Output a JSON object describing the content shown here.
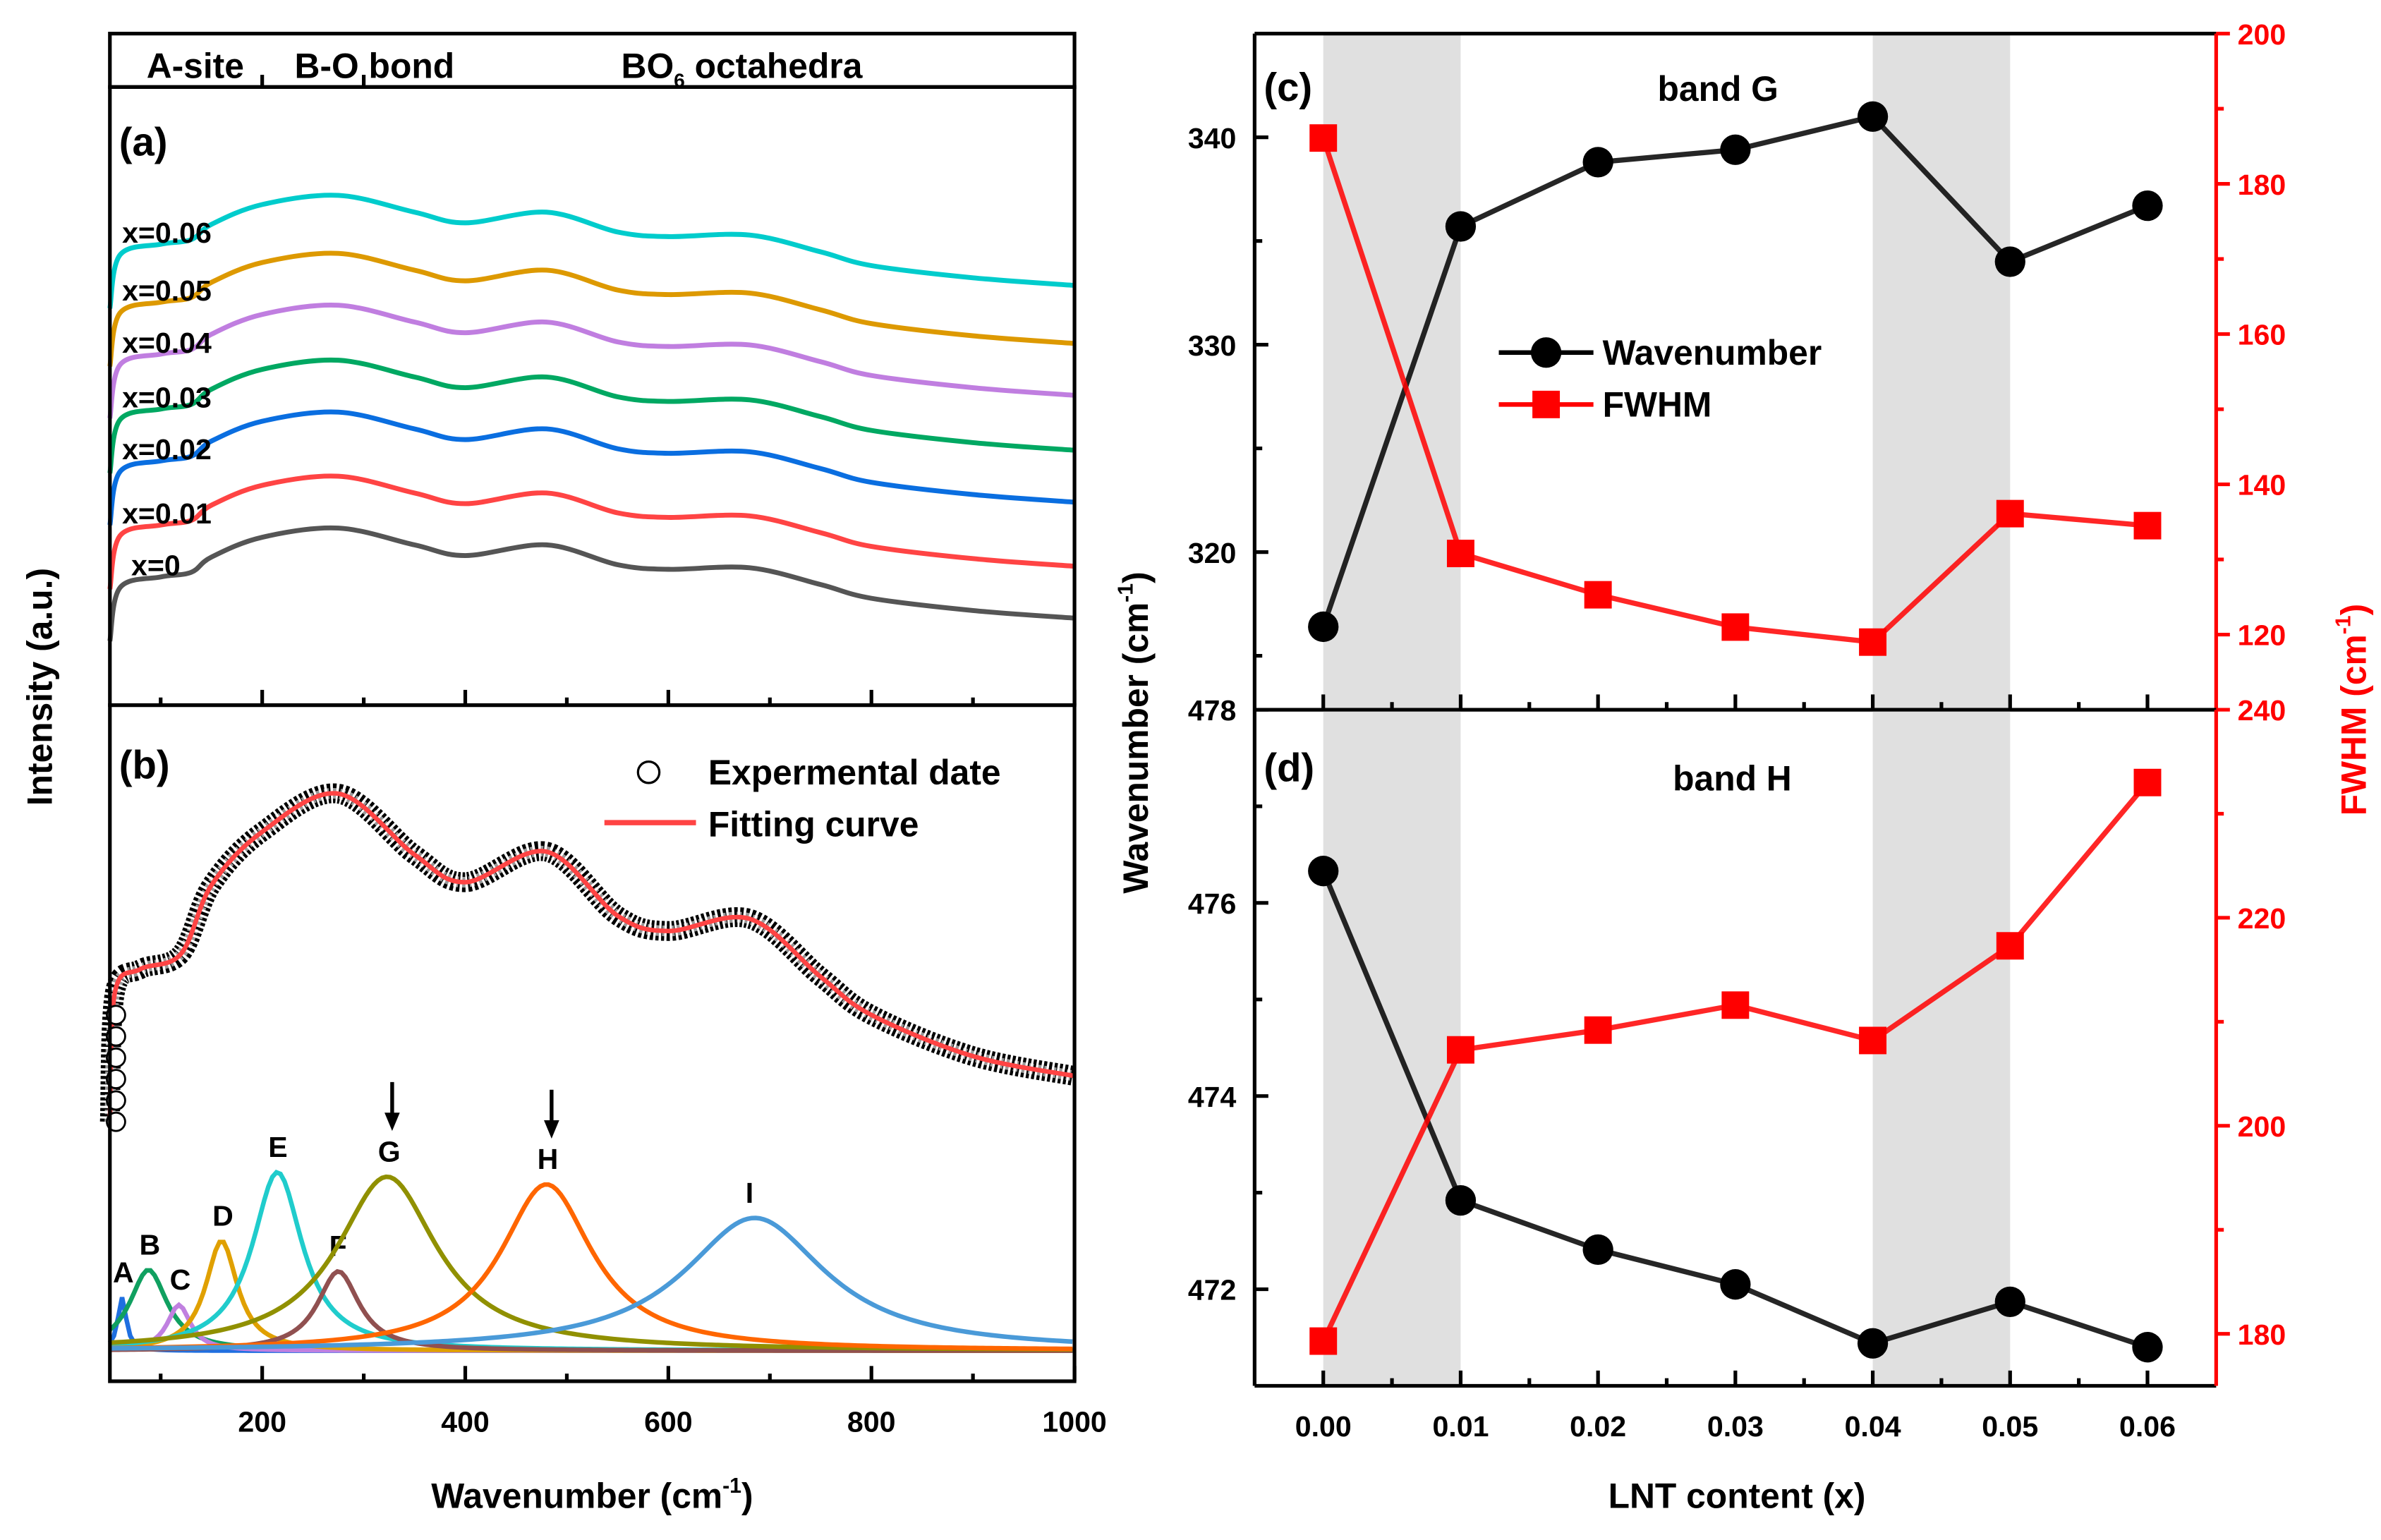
{
  "chart_data": [
    {
      "panel": "(a)",
      "type": "line",
      "ylabel": "Intensity (a.u.)",
      "xlim": [
        50,
        1000
      ],
      "ylim": [
        0,
        405
      ],
      "regions": [
        "A-site",
        "B-O bond",
        "BO6 octahedra"
      ],
      "x": [
        50,
        60,
        100,
        130,
        150,
        200,
        275,
        350,
        400,
        480,
        550,
        600,
        680,
        750,
        800,
        900,
        1000
      ],
      "series": [
        {
          "name": "x=0",
          "color": "#555555",
          "values": [
            42,
            77,
            84,
            87,
            97,
            110,
            116,
            105,
            98,
            105,
            92,
            89,
            90,
            79,
            70,
            62,
            57
          ]
        },
        {
          "name": "x=0.01",
          "color": "#ff4444",
          "values": [
            76,
            111,
            118,
            121,
            131,
            144,
            150,
            139,
            132,
            139,
            126,
            123,
            124,
            113,
            104,
            96,
            91
          ]
        },
        {
          "name": "x=0.02",
          "color": "#0a6ee0",
          "values": [
            118,
            153,
            160,
            163,
            173,
            186,
            192,
            181,
            174,
            181,
            168,
            165,
            166,
            155,
            146,
            138,
            133
          ]
        },
        {
          "name": "x=0.03",
          "color": "#00a862",
          "values": [
            152,
            187,
            194,
            197,
            207,
            220,
            226,
            215,
            208,
            215,
            202,
            199,
            200,
            189,
            180,
            172,
            167
          ]
        },
        {
          "name": "x=0.04",
          "color": "#c07ee0",
          "values": [
            188,
            223,
            230,
            233,
            243,
            256,
            262,
            251,
            244,
            251,
            238,
            235,
            236,
            225,
            216,
            208,
            203
          ]
        },
        {
          "name": "x=0.05",
          "color": "#dd9900",
          "values": [
            222,
            257,
            264,
            267,
            277,
            290,
            296,
            285,
            278,
            285,
            272,
            269,
            270,
            259,
            250,
            242,
            237
          ]
        },
        {
          "name": "x=0.06",
          "color": "#00cccc",
          "values": [
            260,
            295,
            302,
            305,
            315,
            328,
            334,
            323,
            316,
            323,
            310,
            307,
            308,
            297,
            288,
            280,
            275
          ]
        }
      ]
    },
    {
      "panel": "(b)",
      "type": "line",
      "xlabel": "Wavenumber (cm-1)",
      "xlim": [
        50,
        1000
      ],
      "ylim": [
        0,
        443
      ],
      "xticks": [
        200,
        400,
        600,
        800,
        1000
      ],
      "legend": {
        "experimental": "Expermental date",
        "fit": "Fitting curve",
        "position": "top-right"
      },
      "x": [
        50,
        55,
        80,
        120,
        150,
        200,
        275,
        350,
        400,
        480,
        550,
        600,
        680,
        750,
        800,
        900,
        1000
      ],
      "experimental": [
        170,
        255,
        270,
        280,
        325,
        360,
        385,
        345,
        327,
        347,
        305,
        295,
        303,
        265,
        240,
        213,
        200
      ],
      "fit_color": "#ff4444",
      "baseline": 20,
      "peaks": [
        {
          "label": "A",
          "center": 62,
          "height": 35,
          "fwhm": 10,
          "color": "#1f6fe0"
        },
        {
          "label": "B",
          "center": 88,
          "height": 53,
          "fwhm": 45,
          "color": "#10a060"
        },
        {
          "label": "C",
          "center": 118,
          "height": 30,
          "fwhm": 28,
          "color": "#c080e0"
        },
        {
          "label": "D",
          "center": 160,
          "height": 72,
          "fwhm": 38,
          "color": "#e0a000"
        },
        {
          "label": "E",
          "center": 215,
          "height": 117,
          "fwhm": 60,
          "color": "#20cccc"
        },
        {
          "label": "F",
          "center": 275,
          "height": 52,
          "fwhm": 50,
          "color": "#905050"
        },
        {
          "label": "G",
          "center": 323,
          "height": 114,
          "fwhm": 120,
          "color": "#909000",
          "arrow": true
        },
        {
          "label": "H",
          "center": 480,
          "height": 109,
          "fwhm": 110,
          "color": "#ff6600",
          "arrow": true
        },
        {
          "label": "I",
          "center": 685,
          "height": 87,
          "fwhm": 170,
          "color": "#4a9ad8"
        }
      ]
    },
    {
      "panel": "(c)",
      "type": "line",
      "title": "band G",
      "xlim": [
        -0.005,
        0.065
      ],
      "ylim_left": [
        312.4,
        345
      ],
      "ylim_right": [
        110,
        200
      ],
      "yticks_left": [
        320,
        330,
        340
      ],
      "yticks_right": [
        120,
        140,
        160,
        180,
        200
      ],
      "shaded": [
        [
          0,
          0.01
        ],
        [
          0.04,
          0.05
        ]
      ],
      "x": [
        0,
        0.01,
        0.02,
        0.03,
        0.04,
        0.05,
        0.06
      ],
      "series": [
        {
          "name": "Wavenumber",
          "axis": "left",
          "color": "#000000",
          "values": [
            316.4,
            335.7,
            338.8,
            339.4,
            341.0,
            334.0,
            336.7
          ]
        },
        {
          "name": "FWHM",
          "axis": "right",
          "color": "#ff0000",
          "values": [
            186.1,
            130.8,
            125.3,
            121.0,
            119.0,
            136.1,
            134.5
          ]
        }
      ]
    },
    {
      "panel": "(d)",
      "type": "line",
      "title": "band H",
      "xlabel": "LNT content (x)",
      "ylabel_left": "Wavenumber (cm-1)",
      "ylabel_right": "FWHM (cm-1)",
      "xlim": [
        -0.005,
        0.065
      ],
      "ylim_left": [
        471,
        478
      ],
      "ylim_right": [
        175,
        240
      ],
      "xticks": [
        "0.00",
        "0.01",
        "0.02",
        "0.03",
        "0.04",
        "0.05",
        "0.06"
      ],
      "yticks_left": [
        472,
        474,
        476,
        478
      ],
      "yticks_right": [
        180,
        200,
        220,
        240
      ],
      "shaded": [
        [
          0,
          0.01
        ],
        [
          0.04,
          0.05
        ]
      ],
      "x": [
        0,
        0.01,
        0.02,
        0.03,
        0.04,
        0.05,
        0.06
      ],
      "series": [
        {
          "name": "Wavenumber",
          "axis": "left",
          "color": "#000000",
          "values": [
            476.33,
            472.92,
            472.41,
            472.05,
            471.44,
            471.87,
            471.4
          ]
        },
        {
          "name": "FWHM",
          "axis": "right",
          "color": "#ff0000",
          "values": [
            179.3,
            207.3,
            209.2,
            211.6,
            208.2,
            217.3,
            233.0
          ]
        }
      ]
    }
  ],
  "labels": {
    "a": "(a)",
    "b": "(b)",
    "c": "(c)",
    "d": "(d)",
    "region_a": "A-site",
    "region_b": "B-O bond",
    "region_c_main": "BO",
    "region_c_sub": "6",
    "region_c_rest": " octahedra",
    "intensity": "Intensity (a.u.)",
    "xlabel_left_main": "Wavenumber (cm",
    "xlabel_left_sup": "-1",
    "xlabel_left_end": ")",
    "band_g": "band G",
    "band_h": "band H",
    "legend_wavenumber": "Wavenumber",
    "legend_fwhm": "FWHM",
    "legend_exp": "Expermental date",
    "legend_fit": "Fitting curve",
    "lnt": "LNT content (x)",
    "ylab_right_main": "Wavenumber (cm",
    "ylab_right_sup": "-1",
    "ylab_right_end": ")",
    "fwhm_main": "FWHM (cm",
    "fwhm_sup": "-1",
    "fwhm_end": ")"
  }
}
